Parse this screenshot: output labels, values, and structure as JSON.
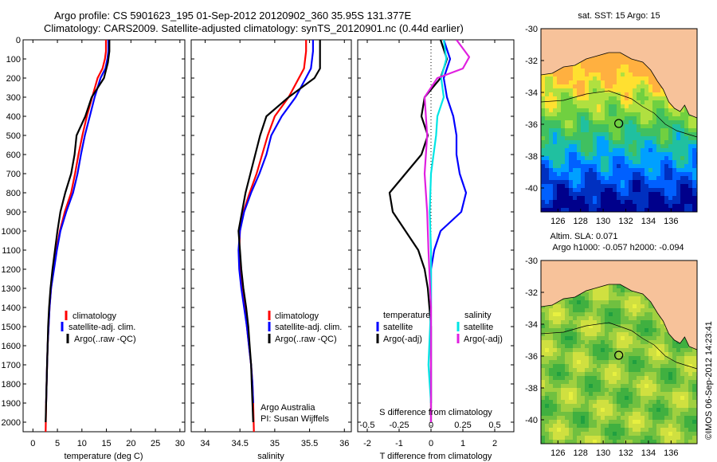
{
  "header": {
    "title_line1": "Argo profile: CS 5901623_195 01-Sep-2012 20120902_360 35.95S 131.377E",
    "title_line2": "Climatology: CARS2009. Satellite-adjusted climatology: synTS_20120901.nc (0.44d earlier)"
  },
  "credit": {
    "line1": "Argo Australia",
    "line2": "PI: Susan Wijffels"
  },
  "stamp": "©IMOS 06-Sep-2012 14:23:41",
  "colors": {
    "clim": "#ff0000",
    "sat": "#0000ff",
    "argo": "#000000",
    "sal_sat": "#00e5e5",
    "sal_argo": "#e020e0",
    "land": "#f7c29a"
  },
  "legend_temp": [
    "climatology",
    "satellite-adj. clim.",
    "Argo(..raw -QC)"
  ],
  "legend_sal": [
    "climatology",
    "satellite-adj. clim.",
    "Argo(..raw -QC)"
  ],
  "legend_diff": {
    "temp_title": "temperature",
    "sal_title": "salinity",
    "sat": "satellite",
    "argo": "Argo(-adj)"
  },
  "map_top": {
    "title": "sat. SST: 15 Argo: 15",
    "below_title": "Altim. SLA: 0.071"
  },
  "map_bottom": {
    "title": "Argo h1000: -0.057 h2000: -0.094"
  },
  "chart_data": [
    {
      "type": "line",
      "panel": "temperature",
      "xlabel": "temperature (deg C)",
      "ylabel": "",
      "xlim": [
        -2,
        31
      ],
      "ylim": [
        2050,
        0
      ],
      "y_inverted": true,
      "xticks": [
        0,
        5,
        10,
        15,
        20,
        25,
        30
      ],
      "yticks": [
        0,
        100,
        200,
        300,
        400,
        500,
        600,
        700,
        800,
        900,
        1000,
        1100,
        1200,
        1300,
        1400,
        1500,
        1600,
        1700,
        1800,
        1900,
        2000
      ],
      "series": [
        {
          "name": "climatology",
          "color": "#ff0000",
          "points": [
            [
              14.9,
              0
            ],
            [
              14.9,
              60
            ],
            [
              14.7,
              100
            ],
            [
              14.2,
              150
            ],
            [
              13.2,
              200
            ],
            [
              12.1,
              300
            ],
            [
              11,
              400
            ],
            [
              10.1,
              500
            ],
            [
              9.3,
              600
            ],
            [
              8.6,
              700
            ],
            [
              7.8,
              800
            ],
            [
              6.5,
              900
            ],
            [
              5.5,
              1000
            ],
            [
              4.8,
              1100
            ],
            [
              4.2,
              1200
            ],
            [
              3.7,
              1300
            ],
            [
              3.4,
              1400
            ],
            [
              3.2,
              1500
            ],
            [
              3,
              1600
            ],
            [
              2.9,
              1700
            ],
            [
              2.8,
              1800
            ],
            [
              2.7,
              1900
            ],
            [
              2.6,
              2050
            ]
          ]
        },
        {
          "name": "satellite-adj. clim.",
          "color": "#0000ff",
          "points": [
            [
              15.4,
              0
            ],
            [
              15.4,
              60
            ],
            [
              15.2,
              100
            ],
            [
              14.8,
              150
            ],
            [
              13.8,
              200
            ],
            [
              12.6,
              300
            ],
            [
              11.6,
              400
            ],
            [
              10.6,
              500
            ],
            [
              9.8,
              600
            ],
            [
              9.1,
              700
            ],
            [
              8.2,
              800
            ],
            [
              6.8,
              900
            ],
            [
              5.6,
              1000
            ],
            [
              4.9,
              1100
            ],
            [
              4.3,
              1200
            ],
            [
              3.7,
              1300
            ],
            [
              3.4,
              1400
            ],
            [
              3.2,
              1500
            ],
            [
              3,
              1600
            ],
            [
              2.9,
              1700
            ],
            [
              2.8,
              1800
            ],
            [
              2.7,
              1900
            ]
          ]
        },
        {
          "name": "Argo(..raw -QC)",
          "color": "#000000",
          "points": [
            [
              15.6,
              0
            ],
            [
              15.6,
              60
            ],
            [
              15.3,
              120
            ],
            [
              14.5,
              200
            ],
            [
              12,
              300
            ],
            [
              10.7,
              400
            ],
            [
              8.9,
              500
            ],
            [
              8.5,
              600
            ],
            [
              7.8,
              700
            ],
            [
              6.6,
              800
            ],
            [
              5.6,
              900
            ],
            [
              5,
              1000
            ],
            [
              4.5,
              1100
            ],
            [
              4,
              1200
            ],
            [
              3.6,
              1300
            ],
            [
              3.3,
              1400
            ],
            [
              3.1,
              1500
            ],
            [
              3,
              1600
            ],
            [
              2.9,
              1700
            ],
            [
              2.8,
              1800
            ],
            [
              2.7,
              1900
            ],
            [
              2.6,
              2000
            ]
          ]
        }
      ]
    },
    {
      "type": "line",
      "panel": "salinity",
      "xlabel": "salinity",
      "ylabel": "",
      "xlim": [
        33.8,
        36.1
      ],
      "ylim": [
        2050,
        0
      ],
      "y_inverted": true,
      "xticks": [
        34,
        34.5,
        35,
        35.5,
        36
      ],
      "series": [
        {
          "name": "climatology",
          "color": "#ff0000",
          "points": [
            [
              35.45,
              0
            ],
            [
              35.45,
              60
            ],
            [
              35.42,
              150
            ],
            [
              35.2,
              300
            ],
            [
              35,
              400
            ],
            [
              34.9,
              500
            ],
            [
              34.82,
              600
            ],
            [
              34.74,
              700
            ],
            [
              34.64,
              800
            ],
            [
              34.55,
              900
            ],
            [
              34.5,
              1000
            ],
            [
              34.49,
              1100
            ],
            [
              34.5,
              1200
            ],
            [
              34.53,
              1300
            ],
            [
              34.57,
              1400
            ],
            [
              34.6,
              1500
            ],
            [
              34.63,
              1600
            ],
            [
              34.66,
              1700
            ],
            [
              34.68,
              1800
            ],
            [
              34.69,
              1900
            ],
            [
              34.7,
              2050
            ]
          ]
        },
        {
          "name": "satellite-adj. clim.",
          "color": "#0000ff",
          "points": [
            [
              35.55,
              0
            ],
            [
              35.55,
              60
            ],
            [
              35.52,
              150
            ],
            [
              35.3,
              300
            ],
            [
              35.1,
              400
            ],
            [
              34.95,
              500
            ],
            [
              34.88,
              600
            ],
            [
              34.78,
              700
            ],
            [
              34.66,
              800
            ],
            [
              34.56,
              900
            ],
            [
              34.5,
              1000
            ],
            [
              34.48,
              1100
            ],
            [
              34.49,
              1200
            ],
            [
              34.52,
              1300
            ],
            [
              34.56,
              1400
            ],
            [
              34.6,
              1500
            ],
            [
              34.63,
              1600
            ],
            [
              34.66,
              1700
            ],
            [
              34.68,
              1800
            ],
            [
              34.69,
              1900
            ]
          ]
        },
        {
          "name": "Argo(..raw -QC)",
          "color": "#000000",
          "points": [
            [
              35.65,
              0
            ],
            [
              35.65,
              150
            ],
            [
              35.57,
              200
            ],
            [
              35.2,
              300
            ],
            [
              34.88,
              400
            ],
            [
              34.79,
              500
            ],
            [
              34.72,
              600
            ],
            [
              34.65,
              700
            ],
            [
              34.58,
              800
            ],
            [
              34.53,
              900
            ],
            [
              34.48,
              1000
            ],
            [
              34.5,
              1100
            ],
            [
              34.52,
              1200
            ],
            [
              34.55,
              1300
            ],
            [
              34.59,
              1400
            ],
            [
              34.62,
              1500
            ],
            [
              34.64,
              1600
            ],
            [
              34.66,
              1700
            ],
            [
              34.67,
              1800
            ],
            [
              34.68,
              1900
            ],
            [
              34.69,
              2000
            ]
          ]
        }
      ]
    },
    {
      "type": "line",
      "panel": "difference",
      "xlabel": "T difference from climatology",
      "x2label": "S difference from climatology",
      "xlim": [
        -2.3,
        2.6
      ],
      "x2lim": [
        -0.575,
        0.65
      ],
      "ylim": [
        2050,
        0
      ],
      "y_inverted": true,
      "xticks": [
        -2,
        -1,
        0,
        1,
        2
      ],
      "x2ticks": [
        -0.5,
        -0.25,
        0,
        0.25,
        0.5
      ],
      "series": [
        {
          "name": "satellite",
          "group": "temperature",
          "color": "#0000ff",
          "points": [
            [
              0.4,
              0
            ],
            [
              0.6,
              100
            ],
            [
              0.4,
              200
            ],
            [
              0.5,
              300
            ],
            [
              0.7,
              400
            ],
            [
              0.8,
              500
            ],
            [
              0.8,
              600
            ],
            [
              0.9,
              700
            ],
            [
              1.1,
              800
            ],
            [
              0.95,
              900
            ],
            [
              0.3,
              1000
            ],
            [
              0.1,
              1100
            ],
            [
              0,
              1200
            ],
            [
              0,
              1400
            ],
            [
              0,
              1700
            ],
            [
              0,
              1900
            ]
          ]
        },
        {
          "name": "Argo(-adj)",
          "group": "temperature",
          "color": "#000000",
          "points": [
            [
              0.3,
              0
            ],
            [
              0.5,
              100
            ],
            [
              0.3,
              200
            ],
            [
              -0.2,
              300
            ],
            [
              -0.3,
              400
            ],
            [
              -0.1,
              500
            ],
            [
              -0.3,
              600
            ],
            [
              -0.8,
              700
            ],
            [
              -1.3,
              800
            ],
            [
              -1.2,
              900
            ],
            [
              -0.8,
              1000
            ],
            [
              -0.4,
              1100
            ],
            [
              -0.2,
              1200
            ],
            [
              -0.1,
              1300
            ],
            [
              0,
              1500
            ],
            [
              0,
              1800
            ],
            [
              0,
              2000
            ]
          ]
        },
        {
          "name": "satellite",
          "group": "salinity",
          "color": "#00e5e5",
          "points": [
            [
              0.1,
              0
            ],
            [
              0.12,
              100
            ],
            [
              0.08,
              200
            ],
            [
              0.1,
              300
            ],
            [
              0.05,
              400
            ],
            [
              0.04,
              500
            ],
            [
              0,
              700
            ],
            [
              -0.01,
              900
            ],
            [
              0,
              1100
            ],
            [
              0,
              1400
            ],
            [
              -0.02,
              1700
            ],
            [
              0,
              1900
            ]
          ]
        },
        {
          "name": "Argo(-adj)",
          "group": "salinity",
          "color": "#e020e0",
          "points": [
            [
              0.2,
              0
            ],
            [
              0.3,
              90
            ],
            [
              0.25,
              150
            ],
            [
              0.05,
              200
            ],
            [
              -0.05,
              300
            ],
            [
              -0.03,
              500
            ],
            [
              -0.05,
              700
            ],
            [
              -0.03,
              900
            ],
            [
              -0.02,
              1100
            ],
            [
              0,
              1400
            ],
            [
              0,
              1700
            ],
            [
              0,
              2000
            ]
          ]
        }
      ]
    },
    {
      "type": "heatmap",
      "panel": "map-sst",
      "title": "sat. SST: 15 Argo: 15",
      "xlim": [
        124.5,
        138.3
      ],
      "ylim": [
        -41.5,
        -30
      ],
      "xticks": [
        126,
        128,
        130,
        132,
        134,
        136
      ],
      "yticks": [
        -30,
        -32,
        -34,
        -36,
        -38,
        -40
      ],
      "argo_position": [
        131.377,
        -35.95
      ]
    },
    {
      "type": "heatmap",
      "panel": "map-sla",
      "title": "Argo h1000: -0.057 h2000: -0.094",
      "xlim": [
        124.5,
        138.3
      ],
      "ylim": [
        -41.5,
        -30
      ],
      "xticks": [
        126,
        128,
        130,
        132,
        134,
        136
      ],
      "yticks": [
        -30,
        -32,
        -34,
        -36,
        -38,
        -40
      ],
      "argo_position": [
        131.377,
        -35.95
      ]
    }
  ]
}
